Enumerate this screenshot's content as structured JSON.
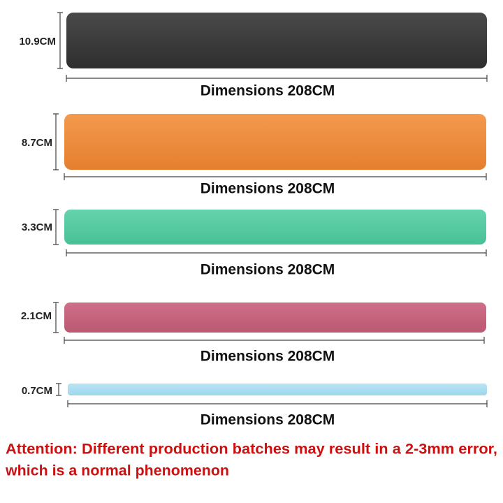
{
  "bands": [
    {
      "width_label": "10.9CM",
      "length_label": "Dimensions 208CM"
    },
    {
      "width_label": "8.7CM",
      "length_label": "Dimensions 208CM"
    },
    {
      "width_label": "3.3CM",
      "length_label": "Dimensions 208CM"
    },
    {
      "width_label": "2.1CM",
      "length_label": "Dimensions 208CM"
    },
    {
      "width_label": "0.7CM",
      "length_label": "Dimensions 208CM"
    }
  ],
  "notice": {
    "lines": [
      "Attention: Different production batches may result in a 2-3mm error,",
      "which is a normal phenomenon"
    ]
  }
}
